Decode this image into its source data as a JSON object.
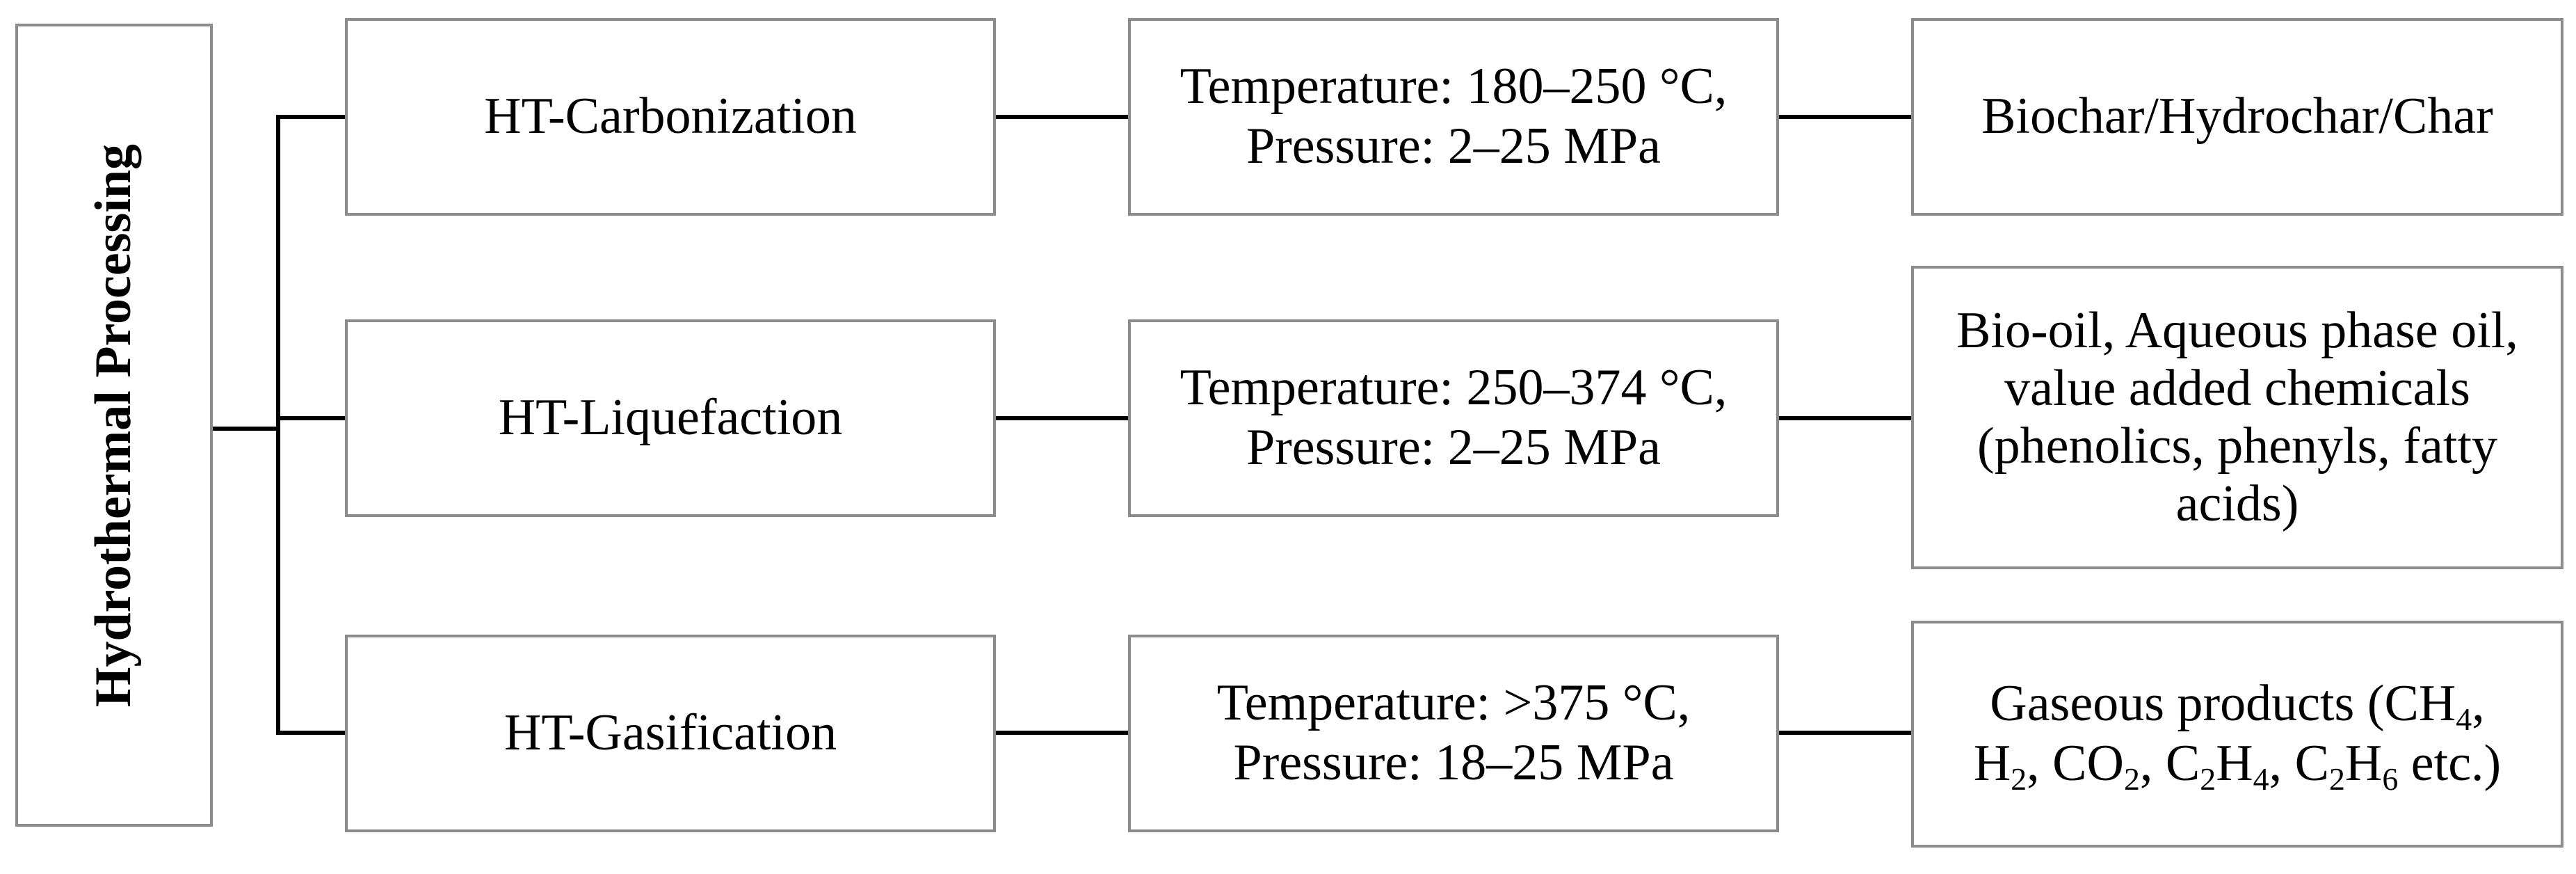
{
  "root": {
    "label": "Hydrothermal Processing"
  },
  "branches": [
    {
      "process": "HT-Carbonization",
      "temperature": "Temperature:  180–250 °C,",
      "pressure": "Pressure: 2–25 MPa",
      "products": "Biochar/Hydrochar/Char"
    },
    {
      "process": "HT-Liquefaction",
      "temperature": "Temperature:  250–374 °C,",
      "pressure": "Pressure: 2–25 MPa",
      "products_lines": [
        "Bio-oil, Aqueous phase oil,",
        "value added chemicals",
        "(phenolics, phenyls, fatty",
        "acids)"
      ]
    },
    {
      "process": "HT-Gasification",
      "temperature": "Temperature:  >375 °C,",
      "pressure": "Pressure: 18–25 MPa",
      "products_parts": {
        "prefix": "Gaseous products (CH",
        "ch4_sub": "4",
        "comma1": ",",
        "h": "H",
        "h2_sub": "2",
        "co": ", CO",
        "co2_sub": "2",
        "c1": ", C",
        "c1_sub": "2",
        "h1": "H",
        "h1_sub": "4",
        "c2": ", C",
        "c2_sub": "2",
        "h2": "H",
        "h2_sub6": "6",
        "suffix": " etc.)"
      }
    }
  ],
  "colors": {
    "box_border": "#8c8c8c",
    "connector": "#000000"
  }
}
